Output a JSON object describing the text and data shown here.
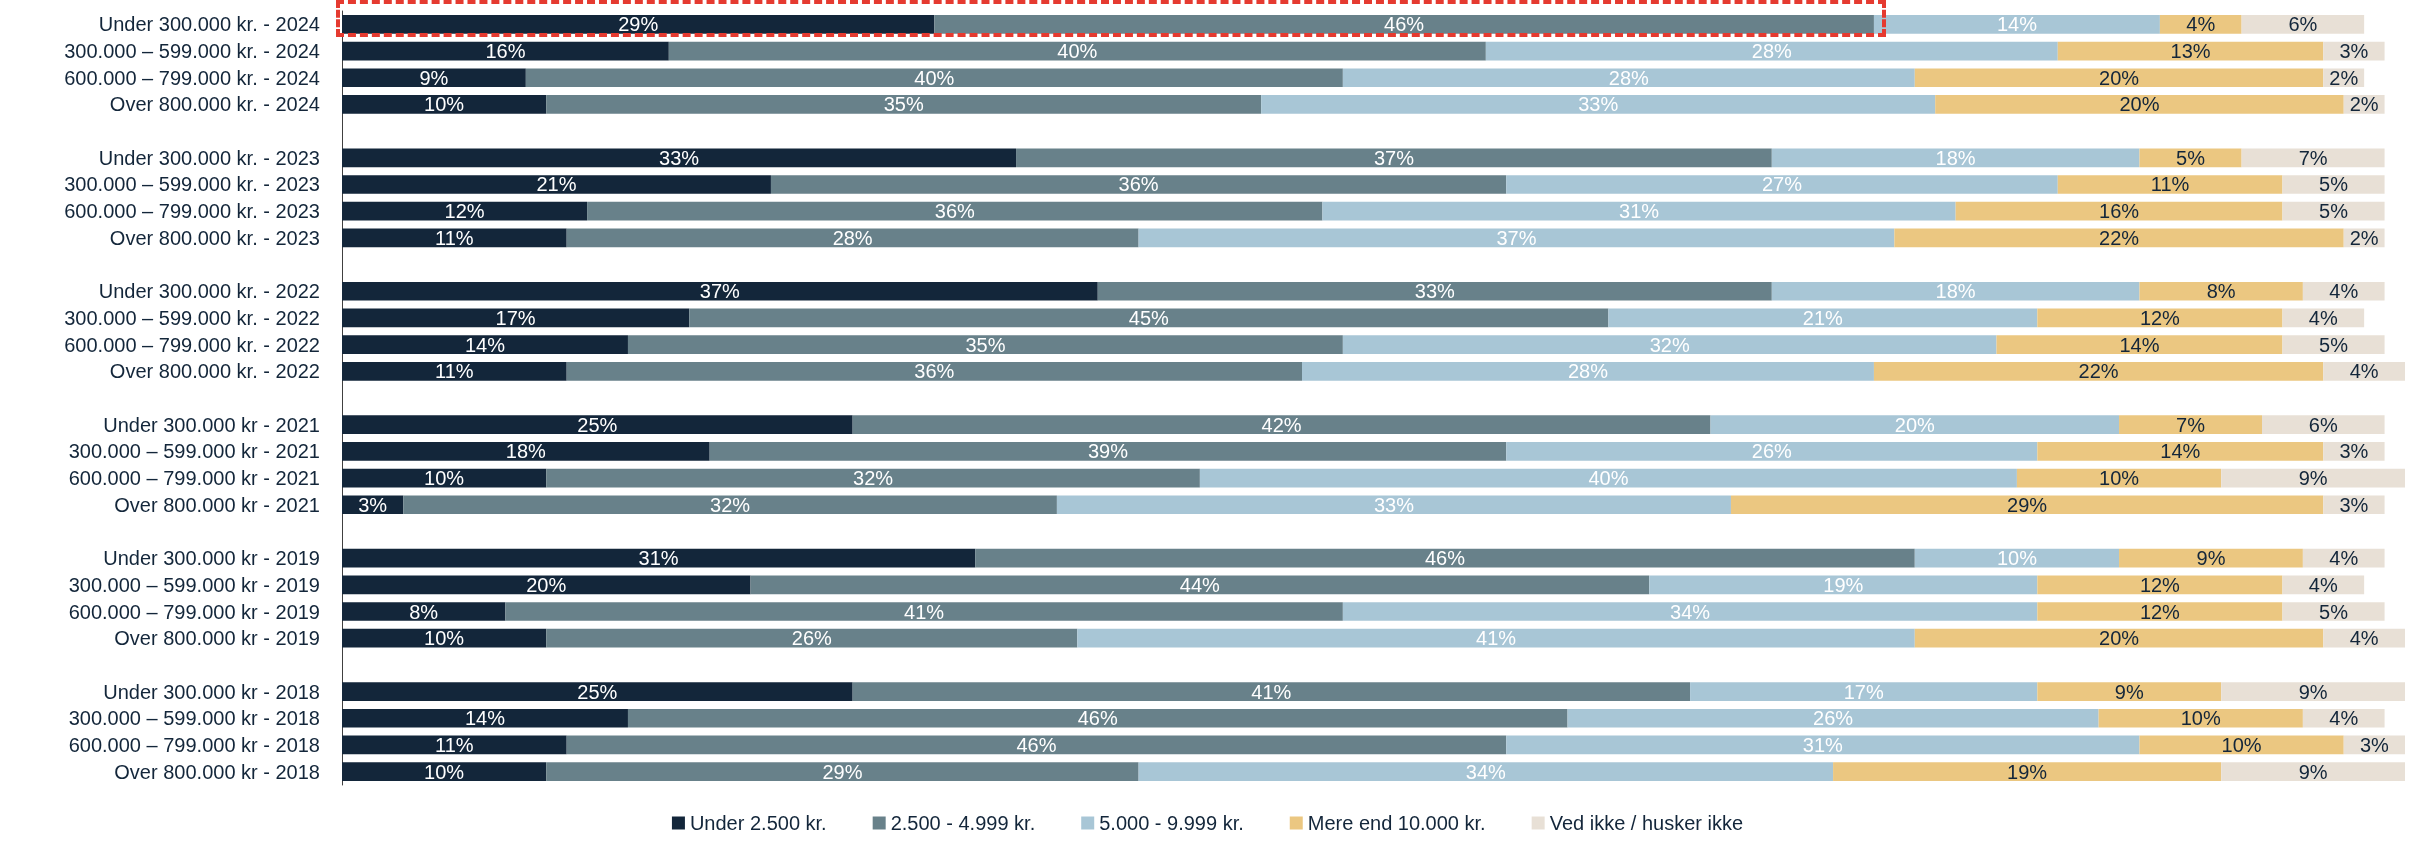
{
  "chart_data": {
    "type": "bar",
    "orientation": "horizontal",
    "stacked": true,
    "legend": "bottom",
    "tick_labels": "y",
    "categories": [
      "Under 300.000 kr. - 2024",
      "300.000 – 599.000 kr. - 2024",
      "600.000 – 799.000 kr. - 2024",
      "Over 800.000 kr. - 2024",
      null,
      "Under 300.000 kr. - 2023",
      "300.000 – 599.000 kr. - 2023",
      "600.000 – 799.000 kr. - 2023",
      "Over 800.000 kr. - 2023",
      null,
      "Under 300.000 kr. - 2022",
      "300.000 – 599.000 kr. - 2022",
      "600.000 – 799.000 kr. - 2022",
      "Over 800.000 kr. - 2022",
      null,
      "Under 300.000 kr - 2021",
      "300.000 – 599.000 kr - 2021",
      "600.000 – 799.000 kr - 2021",
      "Over 800.000 kr - 2021",
      null,
      "Under 300.000 kr - 2019",
      "300.000 – 599.000 kr - 2019",
      "600.000 – 799.000 kr - 2019",
      "Over 800.000 kr - 2019",
      null,
      "Under 300.000 kr - 2018",
      "300.000 – 599.000 kr - 2018",
      "600.000 – 799.000 kr - 2018",
      "Over 800.000 kr - 2018"
    ],
    "series": [
      {
        "name": "Under 2.500 kr.",
        "color": "#13263a",
        "values": [
          29,
          16,
          9,
          10,
          null,
          33,
          21,
          12,
          11,
          null,
          37,
          17,
          14,
          11,
          null,
          25,
          18,
          10,
          3,
          null,
          31,
          20,
          8,
          10,
          null,
          25,
          14,
          11,
          10
        ],
        "value_labels": [
          "29%",
          "16%",
          "9%",
          "10%",
          null,
          "33%",
          "21%",
          "12%",
          "11%",
          null,
          "37%",
          "17%",
          "14%",
          "11%",
          null,
          "25%",
          "18%",
          "10%",
          "3%",
          null,
          "31%",
          "20%",
          "8%",
          "10%",
          null,
          "25%",
          "14%",
          "11%",
          "10%"
        ]
      },
      {
        "name": "2.500 - 4.999 kr.",
        "color": "#68818a",
        "values": [
          46,
          40,
          40,
          35,
          null,
          37,
          36,
          36,
          28,
          null,
          33,
          45,
          35,
          36,
          null,
          42,
          39,
          32,
          32,
          null,
          46,
          44,
          41,
          26,
          null,
          41,
          46,
          46,
          29
        ],
        "value_labels": [
          "46%",
          "40%",
          "40%",
          "35%",
          null,
          "37%",
          "36%",
          "36%",
          "28%",
          null,
          "33%",
          "45%",
          "35%",
          "36%",
          null,
          "42%",
          "39%",
          "32%",
          "32%",
          null,
          "46%",
          "44%",
          "41%",
          "26%",
          null,
          "41%",
          "46%",
          "46%",
          "29%"
        ]
      },
      {
        "name": "5.000 - 9.999 kr.",
        "color": "#a8c6d6",
        "values": [
          14,
          28,
          28,
          33,
          null,
          18,
          27,
          31,
          37,
          null,
          18,
          21,
          32,
          28,
          null,
          20,
          26,
          40,
          33,
          null,
          10,
          19,
          34,
          41,
          null,
          17,
          26,
          31,
          34
        ],
        "value_labels": [
          "14%",
          "28%",
          "28%",
          "33%",
          null,
          "18%",
          "27%",
          "31%",
          "37%",
          null,
          "18%",
          "21%",
          "32%",
          "28%",
          null,
          "20%",
          "26%",
          "40%",
          "33%",
          null,
          "10%",
          "19%",
          "34%",
          "41%",
          null,
          "17%",
          "26%",
          "31%",
          "34%"
        ]
      },
      {
        "name": "Mere end 10.000 kr.",
        "color": "#ebc781",
        "values": [
          4,
          13,
          20,
          20,
          null,
          5,
          11,
          16,
          22,
          null,
          8,
          12,
          14,
          22,
          null,
          7,
          14,
          10,
          29,
          null,
          9,
          12,
          12,
          20,
          null,
          9,
          10,
          10,
          19
        ],
        "value_labels": [
          "4%",
          "13%",
          "20%",
          "20%",
          null,
          "5%",
          "11%",
          "16%",
          "22%",
          null,
          "8%",
          "12%",
          "14%",
          "22%",
          null,
          "7%",
          "14%",
          "10%",
          "29%",
          null,
          "9%",
          "12%",
          "12%",
          "20%",
          null,
          "9%",
          "10%",
          "10%",
          "19%"
        ]
      },
      {
        "name": "Ved ikke / husker ikke",
        "color": "#e8e0d6",
        "values": [
          6,
          3,
          2,
          2,
          null,
          7,
          5,
          5,
          2,
          null,
          4,
          4,
          5,
          4,
          null,
          6,
          3,
          9,
          3,
          null,
          4,
          4,
          5,
          4,
          null,
          9,
          4,
          3,
          9
        ],
        "value_labels": [
          "6%",
          "3%",
          "2%",
          "2%",
          null,
          "7%",
          "5%",
          "5%",
          "2%",
          null,
          "4%",
          "4%",
          "5%",
          "4%",
          null,
          "6%",
          "3%",
          "9%",
          "3%",
          null,
          "4%",
          "4%",
          "5%",
          "4%",
          null,
          "9%",
          "4%",
          "3%",
          "9%"
        ]
      }
    ]
  }
}
